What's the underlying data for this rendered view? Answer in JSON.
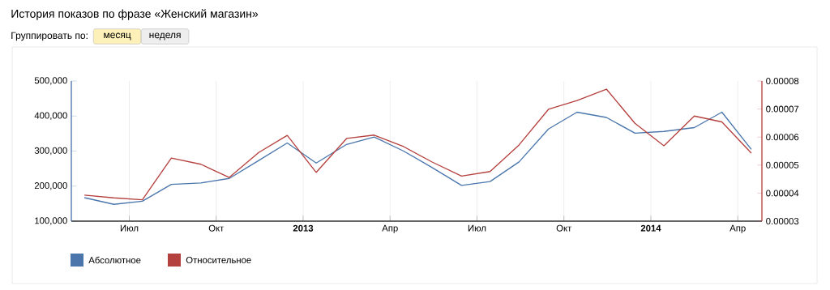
{
  "chart_data": {
    "type": "line",
    "title": "История показов по фразе «Женский магазин»",
    "annotations": [
      "Группировать по:",
      "месяц",
      "неделя"
    ],
    "x": [
      "2012-05-15",
      "2012-06-15",
      "2012-07-15",
      "2012-08-15",
      "2012-09-15",
      "2012-10-15",
      "2012-11-15",
      "2012-12-15",
      "2013-01-15",
      "2013-02-15",
      "2013-03-15",
      "2013-04-15",
      "2013-05-15",
      "2013-06-15",
      "2013-07-15",
      "2013-08-15",
      "2013-09-15",
      "2013-10-15",
      "2013-11-15",
      "2013-12-15",
      "2014-01-15",
      "2014-02-15",
      "2014-03-15",
      "2014-04-15"
    ],
    "series": [
      {
        "name": "Абсолютное",
        "color": "#4a76ac",
        "axis": "y",
        "values": [
          167000,
          148000,
          157000,
          205000,
          209000,
          222000,
          273000,
          323000,
          266000,
          319000,
          340000,
          300000,
          253000,
          202000,
          213000,
          269000,
          363000,
          411000,
          396000,
          351000,
          356000,
          367000,
          411000,
          305000
        ]
      },
      {
        "name": "Относительное",
        "color": "#b5413f",
        "axis": "y2",
        "values": [
          3.93e-05,
          3.83e-05,
          3.76e-05,
          5.25e-05,
          5.03e-05,
          4.56e-05,
          5.45e-05,
          6.06e-05,
          4.74e-05,
          5.95e-05,
          6.07e-05,
          5.66e-05,
          5.11e-05,
          4.61e-05,
          4.77e-05,
          5.72e-05,
          6.99e-05,
          7.3e-05,
          7.71e-05,
          6.49e-05,
          5.69e-05,
          6.75e-05,
          6.54e-05,
          5.43e-05
        ]
      }
    ],
    "xlim": [
      "2012-05-01",
      "2014-04-26"
    ],
    "xticks": [
      {
        "value": "2012-07-01",
        "label": "Июл"
      },
      {
        "value": "2012-10-01",
        "label": "Окт"
      },
      {
        "value": "2013-01-01",
        "label": "**2013**"
      },
      {
        "value": "2013-04-01",
        "label": "Апр"
      },
      {
        "value": "2013-07-01",
        "label": "Июл"
      },
      {
        "value": "2013-10-01",
        "label": "Окт"
      },
      {
        "value": "2014-01-01",
        "label": "**2014**"
      },
      {
        "value": "2014-04-01",
        "label": "Апр"
      }
    ],
    "ylim": [
      100000,
      500000
    ],
    "yticks": [
      {
        "value": 100000,
        "label": "100,000"
      },
      {
        "value": 200000,
        "label": "200,000"
      },
      {
        "value": 300000,
        "label": "300,000"
      },
      {
        "value": 400000,
        "label": "400,000"
      },
      {
        "value": 500000,
        "label": "500,000"
      }
    ],
    "y2lim": [
      3e-05,
      8e-05
    ],
    "y2ticks": [
      {
        "value": 3e-05,
        "label": "0.00003"
      },
      {
        "value": 4e-05,
        "label": "0.00004"
      },
      {
        "value": 5e-05,
        "label": "0.00005"
      },
      {
        "value": 6e-05,
        "label": "0.00006"
      },
      {
        "value": 7e-05,
        "label": "0.00007"
      },
      {
        "value": 8e-05,
        "label": "0.00008"
      }
    ],
    "grid": "x",
    "legend": "bottom left",
    "marker": "none",
    "line_style": "solid"
  }
}
